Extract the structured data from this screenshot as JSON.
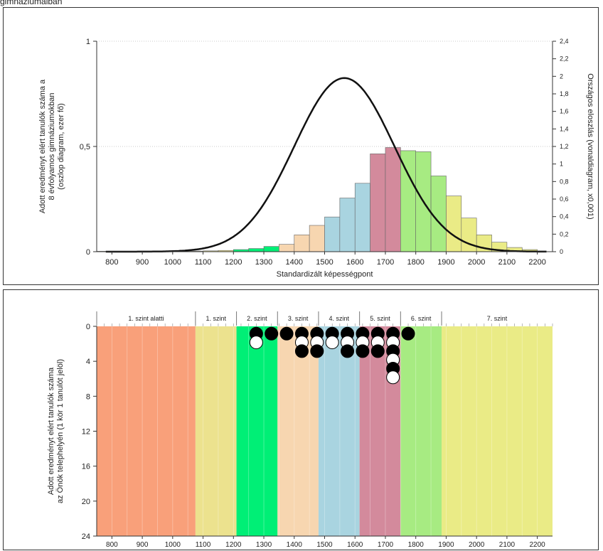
{
  "header": {
    "text": "gimnáziumaiban"
  },
  "colors": {
    "level_below1": "#f9a07a",
    "level1": "#ece28e",
    "level2": "#00ef76",
    "level3": "#f7d6b0",
    "level4": "#a9d4e0",
    "level5": "#d38a9c",
    "level6": "#a7eb82",
    "level7": "#eaeb86",
    "curve": "#111111",
    "circle_filled": "#000000",
    "circle_open": "#ffffff"
  },
  "chart_data": [
    {
      "type": "bar",
      "overlay": "line",
      "xlabel": "Standardizált képességpont",
      "ylabel": [
        "Adott eredményt elért tanulók száma a",
        "8 évfolyamos gimnáziumokban",
        "(oszlop diagram, ezer fő)"
      ],
      "y2label": "Országos eloszlás (vonaldiagram, x0,001)",
      "xlim": [
        750,
        2250
      ],
      "ylim": [
        0,
        1
      ],
      "y2lim": [
        0,
        2.4
      ],
      "x_ticks": [
        800,
        900,
        1000,
        1100,
        1200,
        1300,
        1400,
        1500,
        1600,
        1700,
        1800,
        1900,
        2000,
        2100,
        2200
      ],
      "y_ticks": [
        0,
        0.5,
        1
      ],
      "y_tick_labels": [
        "0",
        "0,5",
        "1"
      ],
      "y2_ticks": [
        0,
        0.2,
        0.4,
        0.6,
        0.8,
        1,
        1.2,
        1.4,
        1.6,
        1.8,
        2,
        2.2,
        2.4
      ],
      "y2_tick_labels": [
        "0",
        "0,2",
        "0,4",
        "0,6",
        "0,8",
        "1",
        "1,2",
        "1,4",
        "1,6",
        "1,8",
        "2",
        "2,2",
        "2,4"
      ],
      "grid": "horizontal dotted",
      "bin_width": 50,
      "bars": [
        {
          "x": 775,
          "value": 0.002,
          "level": "level_below1"
        },
        {
          "x": 825,
          "value": 0.002,
          "level": "level_below1"
        },
        {
          "x": 875,
          "value": 0.002,
          "level": "level_below1"
        },
        {
          "x": 925,
          "value": 0.002,
          "level": "level_below1"
        },
        {
          "x": 975,
          "value": 0.002,
          "level": "level_below1"
        },
        {
          "x": 1025,
          "value": 0.002,
          "level": "level_below1"
        },
        {
          "x": 1075,
          "value": 0.003,
          "level": "level1"
        },
        {
          "x": 1125,
          "value": 0.004,
          "level": "level1"
        },
        {
          "x": 1175,
          "value": 0.006,
          "level": "level1"
        },
        {
          "x": 1225,
          "value": 0.01,
          "level": "level2"
        },
        {
          "x": 1275,
          "value": 0.015,
          "level": "level2"
        },
        {
          "x": 1325,
          "value": 0.025,
          "level": "level2"
        },
        {
          "x": 1375,
          "value": 0.035,
          "level": "level3"
        },
        {
          "x": 1425,
          "value": 0.08,
          "level": "level3"
        },
        {
          "x": 1475,
          "value": 0.125,
          "level": "level3"
        },
        {
          "x": 1525,
          "value": 0.165,
          "level": "level4"
        },
        {
          "x": 1575,
          "value": 0.255,
          "level": "level4"
        },
        {
          "x": 1625,
          "value": 0.325,
          "level": "level4"
        },
        {
          "x": 1675,
          "value": 0.465,
          "level": "level5"
        },
        {
          "x": 1725,
          "value": 0.495,
          "level": "level5"
        },
        {
          "x": 1775,
          "value": 0.48,
          "level": "level6"
        },
        {
          "x": 1825,
          "value": 0.475,
          "level": "level6"
        },
        {
          "x": 1875,
          "value": 0.36,
          "level": "level6"
        },
        {
          "x": 1925,
          "value": 0.265,
          "level": "level7"
        },
        {
          "x": 1975,
          "value": 0.16,
          "level": "level7"
        },
        {
          "x": 2025,
          "value": 0.08,
          "level": "level7"
        },
        {
          "x": 2075,
          "value": 0.045,
          "level": "level7"
        },
        {
          "x": 2125,
          "value": 0.02,
          "level": "level7"
        },
        {
          "x": 2175,
          "value": 0.01,
          "level": "level7"
        }
      ],
      "curve": {
        "mean": 1565,
        "sd": 165,
        "peak": 1.98
      }
    },
    {
      "type": "scatter",
      "ylabel": [
        "Adott eredményt elért tanulók száma",
        "az Önök telephelyén (1 kör 1 tanulót jelöl)"
      ],
      "xlim": [
        750,
        2250
      ],
      "ylim": [
        24,
        0
      ],
      "x_ticks": [
        800,
        900,
        1000,
        1100,
        1200,
        1300,
        1400,
        1500,
        1600,
        1700,
        1800,
        1900,
        2000,
        2100,
        2200
      ],
      "y_ticks": [
        0,
        4,
        8,
        12,
        16,
        20,
        24
      ],
      "bands": [
        {
          "label": "1. szint alatti",
          "from": 750,
          "to": 1075,
          "level": "level_below1"
        },
        {
          "label": "1. szint",
          "from": 1075,
          "to": 1210,
          "level": "level1"
        },
        {
          "label": "2. szint",
          "from": 1210,
          "to": 1345,
          "level": "level2"
        },
        {
          "label": "3. szint",
          "from": 1345,
          "to": 1480,
          "level": "level3"
        },
        {
          "label": "4. szint",
          "from": 1480,
          "to": 1615,
          "level": "level4"
        },
        {
          "label": "5. szint",
          "from": 1615,
          "to": 1750,
          "level": "level5"
        },
        {
          "label": "6. szint",
          "from": 1750,
          "to": 1885,
          "level": "level6"
        },
        {
          "label": "7. szint",
          "from": 1885,
          "to": 2250,
          "level": "level7"
        }
      ],
      "students": [
        {
          "x": 1275,
          "y": 1,
          "filled": true
        },
        {
          "x": 1275,
          "y": 2,
          "filled": false
        },
        {
          "x": 1325,
          "y": 1,
          "filled": true
        },
        {
          "x": 1375,
          "y": 1,
          "filled": true
        },
        {
          "x": 1425,
          "y": 1,
          "filled": true
        },
        {
          "x": 1425,
          "y": 2,
          "filled": false
        },
        {
          "x": 1425,
          "y": 3,
          "filled": true
        },
        {
          "x": 1475,
          "y": 1,
          "filled": true
        },
        {
          "x": 1475,
          "y": 2,
          "filled": false
        },
        {
          "x": 1475,
          "y": 3,
          "filled": true
        },
        {
          "x": 1525,
          "y": 1,
          "filled": true
        },
        {
          "x": 1525,
          "y": 2,
          "filled": false
        },
        {
          "x": 1575,
          "y": 1,
          "filled": true
        },
        {
          "x": 1575,
          "y": 2,
          "filled": false
        },
        {
          "x": 1575,
          "y": 3,
          "filled": true
        },
        {
          "x": 1625,
          "y": 1,
          "filled": true
        },
        {
          "x": 1625,
          "y": 2,
          "filled": false
        },
        {
          "x": 1625,
          "y": 3,
          "filled": true
        },
        {
          "x": 1675,
          "y": 1,
          "filled": true
        },
        {
          "x": 1675,
          "y": 2,
          "filled": false
        },
        {
          "x": 1675,
          "y": 3,
          "filled": true
        },
        {
          "x": 1725,
          "y": 1,
          "filled": true
        },
        {
          "x": 1725,
          "y": 2,
          "filled": false
        },
        {
          "x": 1725,
          "y": 3,
          "filled": true
        },
        {
          "x": 1725,
          "y": 4,
          "filled": false
        },
        {
          "x": 1725,
          "y": 5,
          "filled": true
        },
        {
          "x": 1725,
          "y": 6,
          "filled": false
        },
        {
          "x": 1775,
          "y": 1,
          "filled": true
        }
      ]
    }
  ]
}
